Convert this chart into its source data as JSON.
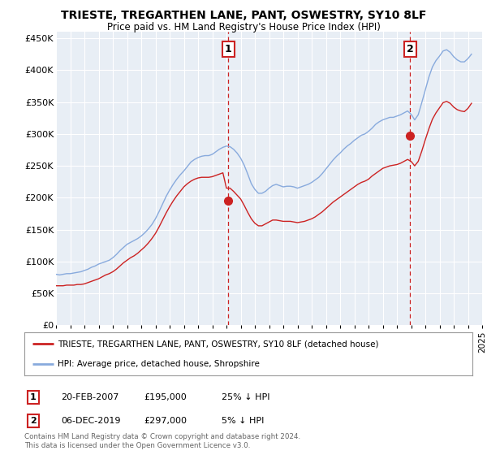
{
  "title": "TRIESTE, TREGARTHEN LANE, PANT, OSWESTRY, SY10 8LF",
  "subtitle": "Price paid vs. HM Land Registry's House Price Index (HPI)",
  "background_color": "#ffffff",
  "plot_bg_color": "#e8eef5",
  "hpi_color": "#88aadd",
  "price_color": "#cc2222",
  "annotation_color": "#cc2222",
  "ylim": [
    0,
    460000
  ],
  "yticks": [
    0,
    50000,
    100000,
    150000,
    200000,
    250000,
    300000,
    350000,
    400000,
    450000
  ],
  "ytick_labels": [
    "£0",
    "£50K",
    "£100K",
    "£150K",
    "£200K",
    "£250K",
    "£300K",
    "£350K",
    "£400K",
    "£450K"
  ],
  "sale1": {
    "date": "20-FEB-2007",
    "price": 195000,
    "label": "1",
    "hpi_pct": "25% ↓ HPI"
  },
  "sale2": {
    "date": "06-DEC-2019",
    "price": 297000,
    "label": "2",
    "hpi_pct": "5% ↓ HPI"
  },
  "legend_entries": [
    "TRIESTE, TREGARTHEN LANE, PANT, OSWESTRY, SY10 8LF (detached house)",
    "HPI: Average price, detached house, Shropshire"
  ],
  "footnote": "Contains HM Land Registry data © Crown copyright and database right 2024.\nThis data is licensed under the Open Government Licence v3.0.",
  "hpi_data_x": [
    1995.0,
    1995.25,
    1995.5,
    1995.75,
    1996.0,
    1996.25,
    1996.5,
    1996.75,
    1997.0,
    1997.25,
    1997.5,
    1997.75,
    1998.0,
    1998.25,
    1998.5,
    1998.75,
    1999.0,
    1999.25,
    1999.5,
    1999.75,
    2000.0,
    2000.25,
    2000.5,
    2000.75,
    2001.0,
    2001.25,
    2001.5,
    2001.75,
    2002.0,
    2002.25,
    2002.5,
    2002.75,
    2003.0,
    2003.25,
    2003.5,
    2003.75,
    2004.0,
    2004.25,
    2004.5,
    2004.75,
    2005.0,
    2005.25,
    2005.5,
    2005.75,
    2006.0,
    2006.25,
    2006.5,
    2006.75,
    2007.0,
    2007.25,
    2007.5,
    2007.75,
    2008.0,
    2008.25,
    2008.5,
    2008.75,
    2009.0,
    2009.25,
    2009.5,
    2009.75,
    2010.0,
    2010.25,
    2010.5,
    2010.75,
    2011.0,
    2011.25,
    2011.5,
    2011.75,
    2012.0,
    2012.25,
    2012.5,
    2012.75,
    2013.0,
    2013.25,
    2013.5,
    2013.75,
    2014.0,
    2014.25,
    2014.5,
    2014.75,
    2015.0,
    2015.25,
    2015.5,
    2015.75,
    2016.0,
    2016.25,
    2016.5,
    2016.75,
    2017.0,
    2017.25,
    2017.5,
    2017.75,
    2018.0,
    2018.25,
    2018.5,
    2018.75,
    2019.0,
    2019.25,
    2019.5,
    2019.75,
    2020.0,
    2020.25,
    2020.5,
    2020.75,
    2021.0,
    2021.25,
    2021.5,
    2021.75,
    2022.0,
    2022.25,
    2022.5,
    2022.75,
    2023.0,
    2023.25,
    2023.5,
    2023.75,
    2024.0,
    2024.25
  ],
  "hpi_data_y": [
    80000,
    79000,
    80000,
    81000,
    81000,
    82000,
    83000,
    84000,
    86000,
    88000,
    91000,
    93000,
    96000,
    98000,
    100000,
    102000,
    106000,
    111000,
    117000,
    122000,
    127000,
    130000,
    133000,
    136000,
    140000,
    145000,
    151000,
    158000,
    167000,
    178000,
    190000,
    202000,
    212000,
    221000,
    229000,
    236000,
    242000,
    249000,
    256000,
    260000,
    263000,
    265000,
    266000,
    266000,
    268000,
    272000,
    276000,
    279000,
    281000,
    280000,
    276000,
    270000,
    262000,
    251000,
    237000,
    222000,
    213000,
    207000,
    207000,
    210000,
    215000,
    219000,
    221000,
    219000,
    217000,
    218000,
    218000,
    217000,
    215000,
    217000,
    219000,
    221000,
    224000,
    228000,
    232000,
    238000,
    245000,
    252000,
    259000,
    265000,
    270000,
    276000,
    281000,
    285000,
    290000,
    294000,
    298000,
    300000,
    304000,
    309000,
    315000,
    319000,
    322000,
    324000,
    326000,
    326000,
    328000,
    330000,
    333000,
    336000,
    331000,
    322000,
    330000,
    349000,
    369000,
    389000,
    405000,
    415000,
    422000,
    430000,
    432000,
    428000,
    421000,
    416000,
    413000,
    413000,
    418000,
    425000
  ],
  "price_data_x": [
    1995.0,
    1995.25,
    1995.5,
    1995.75,
    1996.0,
    1996.25,
    1996.5,
    1996.75,
    1997.0,
    1997.25,
    1997.5,
    1997.75,
    1998.0,
    1998.25,
    1998.5,
    1998.75,
    1999.0,
    1999.25,
    1999.5,
    1999.75,
    2000.0,
    2000.25,
    2000.5,
    2000.75,
    2001.0,
    2001.25,
    2001.5,
    2001.75,
    2002.0,
    2002.25,
    2002.5,
    2002.75,
    2003.0,
    2003.25,
    2003.5,
    2003.75,
    2004.0,
    2004.25,
    2004.5,
    2004.75,
    2005.0,
    2005.25,
    2005.5,
    2005.75,
    2006.0,
    2006.25,
    2006.5,
    2006.75,
    2007.0,
    2007.25,
    2007.5,
    2007.75,
    2008.0,
    2008.25,
    2008.5,
    2008.75,
    2009.0,
    2009.25,
    2009.5,
    2009.75,
    2010.0,
    2010.25,
    2010.5,
    2010.75,
    2011.0,
    2011.25,
    2011.5,
    2011.75,
    2012.0,
    2012.25,
    2012.5,
    2012.75,
    2013.0,
    2013.25,
    2013.5,
    2013.75,
    2014.0,
    2014.25,
    2014.5,
    2014.75,
    2015.0,
    2015.25,
    2015.5,
    2015.75,
    2016.0,
    2016.25,
    2016.5,
    2016.75,
    2017.0,
    2017.25,
    2017.5,
    2017.75,
    2018.0,
    2018.25,
    2018.5,
    2018.75,
    2019.0,
    2019.25,
    2019.5,
    2019.75,
    2020.0,
    2020.25,
    2020.5,
    2020.75,
    2021.0,
    2021.25,
    2021.5,
    2021.75,
    2022.0,
    2022.25,
    2022.5,
    2022.75,
    2023.0,
    2023.25,
    2023.5,
    2023.75,
    2024.0,
    2024.25
  ],
  "price_data_y": [
    62000,
    62000,
    62000,
    63000,
    63000,
    63000,
    64000,
    64000,
    65000,
    67000,
    69000,
    71000,
    73000,
    76000,
    79000,
    81000,
    84000,
    88000,
    93000,
    98000,
    102000,
    106000,
    109000,
    113000,
    118000,
    123000,
    129000,
    136000,
    144000,
    154000,
    165000,
    176000,
    186000,
    195000,
    203000,
    210000,
    217000,
    222000,
    226000,
    229000,
    231000,
    232000,
    232000,
    232000,
    233000,
    235000,
    237000,
    239000,
    215000,
    215000,
    210000,
    204000,
    198000,
    188000,
    177000,
    167000,
    160000,
    156000,
    156000,
    159000,
    162000,
    165000,
    165000,
    164000,
    163000,
    163000,
    163000,
    162000,
    161000,
    162000,
    163000,
    165000,
    167000,
    170000,
    174000,
    178000,
    183000,
    188000,
    193000,
    197000,
    201000,
    205000,
    209000,
    213000,
    217000,
    221000,
    224000,
    226000,
    229000,
    234000,
    238000,
    242000,
    246000,
    248000,
    250000,
    251000,
    252000,
    254000,
    257000,
    260000,
    257000,
    250000,
    257000,
    273000,
    291000,
    308000,
    323000,
    333000,
    341000,
    349000,
    351000,
    348000,
    342000,
    338000,
    336000,
    335000,
    340000,
    348000
  ],
  "xlim": [
    1995,
    2025
  ],
  "xticks": [
    1995,
    1996,
    1997,
    1998,
    1999,
    2000,
    2001,
    2002,
    2003,
    2004,
    2005,
    2006,
    2007,
    2008,
    2009,
    2010,
    2011,
    2012,
    2013,
    2014,
    2015,
    2016,
    2017,
    2018,
    2019,
    2020,
    2021,
    2022,
    2023,
    2024,
    2025
  ],
  "sale1_x": 2007.12,
  "sale1_y": 195000,
  "sale2_x": 2019.92,
  "sale2_y": 297000
}
